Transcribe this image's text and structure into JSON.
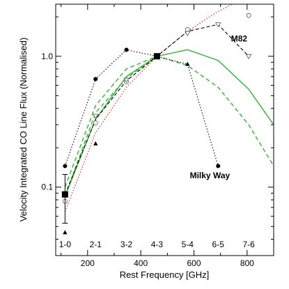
{
  "chart_data": {
    "type": "line",
    "xlabel": "Rest Frequency [GHz]",
    "ylabel": "Velocity Integrated CO Line Flux (Normalised)",
    "xlim": [
      80,
      900
    ],
    "ylim": [
      0.03,
      2.5
    ],
    "yscale": "log",
    "grid": false,
    "x_ticks": [
      200,
      400,
      600,
      800
    ],
    "x_tick_labels": [
      "200",
      "400",
      "600",
      "800"
    ],
    "y_ticks": [
      0.1,
      1.0
    ],
    "y_tick_labels": [
      "0.1",
      "1.0"
    ],
    "transitions": [
      {
        "label": "1-0",
        "x": 115
      },
      {
        "label": "2-1",
        "x": 230
      },
      {
        "label": "3-2",
        "x": 346
      },
      {
        "label": "4-3",
        "x": 461
      },
      {
        "label": "5-4",
        "x": 576
      },
      {
        "label": "6-5",
        "x": 691
      },
      {
        "label": "7-6",
        "x": 806
      }
    ],
    "annotations": [
      {
        "text": "M82",
        "x": 770,
        "y": 1.3
      },
      {
        "text": "Milky Way",
        "x": 660,
        "y": 0.117
      }
    ],
    "series": [
      {
        "style": "red-dotted-curve",
        "color": "#e8202a",
        "x": [
          115,
          230,
          346,
          461,
          576,
          691,
          806
        ],
        "y": [
          0.065,
          0.26,
          0.58,
          1.0,
          1.55,
          2.2,
          2.9
        ]
      },
      {
        "style": "green-solid",
        "color": "#33b233",
        "x": [
          115,
          230,
          346,
          461,
          576,
          691,
          806,
          900
        ],
        "y": [
          0.085,
          0.33,
          0.7,
          1.0,
          1.12,
          0.93,
          0.56,
          0.3
        ]
      },
      {
        "style": "green-dashed",
        "color": "#33b233",
        "x": [
          115,
          230,
          346,
          461,
          576,
          691,
          806,
          900
        ],
        "y": [
          0.1,
          0.42,
          0.8,
          1.0,
          0.85,
          0.58,
          0.3,
          0.145
        ]
      },
      {
        "style": "green-dashed",
        "color": "#33b233",
        "x": [
          115,
          230,
          346,
          461
        ],
        "y": [
          0.085,
          0.37,
          0.68,
          1.0
        ]
      },
      {
        "style": "black-dashed-line",
        "color": "#000000",
        "x": [
          115,
          230,
          346,
          461,
          576,
          691,
          806
        ],
        "y": [
          0.088,
          0.33,
          0.65,
          1.0,
          1.55,
          1.75,
          1.0
        ]
      },
      {
        "style": "black-dotted-line",
        "color": "#000000",
        "x": [
          115,
          230,
          346,
          461,
          576,
          691
        ],
        "y": [
          0.145,
          0.67,
          1.12,
          1.0,
          0.87,
          0.145
        ]
      },
      {
        "marker": "circle-filled",
        "color": "#000000",
        "x": [
          115,
          230,
          346,
          691
        ],
        "y": [
          0.145,
          0.67,
          1.12,
          0.145
        ]
      },
      {
        "marker": "triangle-up-filled",
        "color": "#000000",
        "x": [
          115,
          230,
          346,
          576
        ],
        "y": [
          0.045,
          0.215,
          0.65,
          0.87
        ]
      },
      {
        "marker": "circle-open",
        "color": "#000000",
        "x": [
          115,
          230,
          346,
          576,
          806
        ],
        "y": [
          0.078,
          0.31,
          0.64,
          1.6,
          2.05
        ]
      },
      {
        "marker": "triangle-down-open",
        "color": "#000000",
        "x": [
          230,
          346,
          576,
          691,
          806
        ],
        "y": [
          0.35,
          0.66,
          1.5,
          1.75,
          1.0
        ]
      },
      {
        "marker": "square-filled",
        "color": "#000000",
        "x": [
          115,
          461
        ],
        "y": [
          0.088,
          1.0
        ],
        "yerr": [
          [
            0.053,
            0.125
          ],
          null
        ]
      }
    ]
  }
}
